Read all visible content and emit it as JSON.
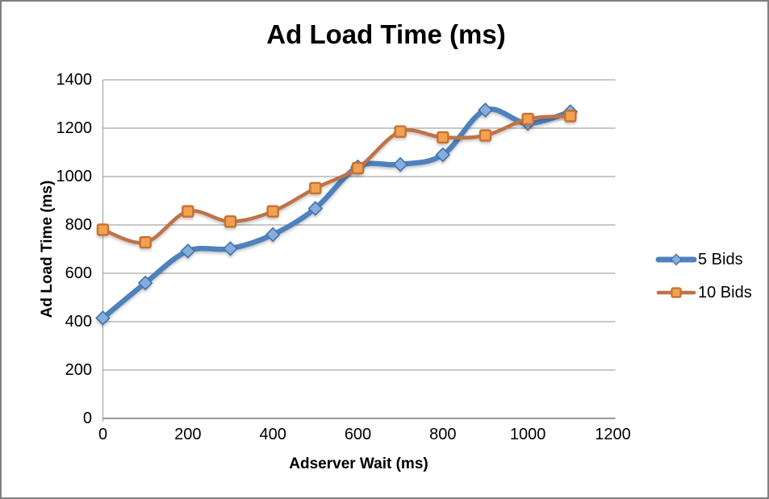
{
  "frame": {
    "background": "#FFFFFF",
    "border_color": "#7F7F7F"
  },
  "chart_data": {
    "type": "line",
    "title": "Ad Load Time (ms)",
    "xlabel": "Adserver Wait (ms)",
    "ylabel": "Ad Load Time (ms)",
    "x": [
      0,
      100,
      200,
      300,
      400,
      500,
      600,
      700,
      800,
      900,
      1000,
      1100
    ],
    "series": [
      {
        "name": "5 Bids",
        "values": [
          415,
          560,
          692,
          702,
          760,
          868,
          1040,
          1050,
          1090,
          1275,
          1220,
          1268
        ],
        "line_color": "#4F81BD",
        "line_width": 6.5,
        "marker": "diamond",
        "marker_fill": "#85AEDF",
        "marker_stroke": "#4472A8",
        "smooth": true
      },
      {
        "name": "10 Bids",
        "values": [
          780,
          728,
          856,
          814,
          856,
          952,
          1035,
          1186,
          1162,
          1170,
          1238,
          1250
        ],
        "line_color": "#BE7347",
        "line_width": 4.5,
        "marker": "square",
        "marker_fill": "#F0A251",
        "marker_stroke": "#C96F31",
        "smooth": true
      }
    ],
    "xticks": [
      0,
      200,
      400,
      600,
      800,
      1000,
      1200
    ],
    "yticks": [
      0,
      200,
      400,
      600,
      800,
      1000,
      1200,
      1400
    ],
    "xlim": [
      0,
      1205
    ],
    "ylim": [
      0,
      1400
    ],
    "grid": "horizontal",
    "gridline_color": "#A6A6A6",
    "axis_color": "#999999",
    "text_color": "#000000",
    "legend_position": "right"
  }
}
